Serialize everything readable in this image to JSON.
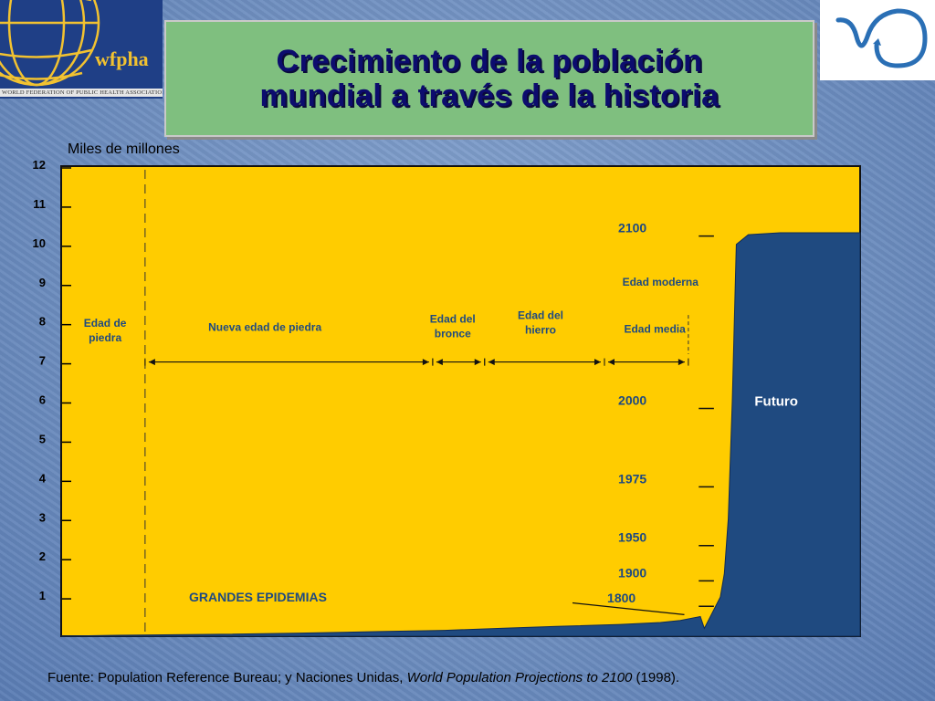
{
  "header": {
    "title_line1": "Crecimiento de la población",
    "title_line2": "mundial a través de la historia",
    "logo_left_text": "wfpha",
    "logo_left_org": "WORLD FEDERATION OF PUBLIC HEALTH ASSOCIATIONS"
  },
  "colors": {
    "plot_background": "#ffcc00",
    "area_fill": "#1f4a80",
    "title_bg": "#7fbf7f",
    "title_text": "#0c0c6e"
  },
  "chart_data": {
    "type": "area",
    "ylabel": "Miles de millones",
    "ylim": [
      0,
      12
    ],
    "y_ticks": [
      1,
      2,
      3,
      4,
      5,
      6,
      7,
      8,
      9,
      10,
      11,
      12
    ],
    "series": [
      {
        "points": [
          {
            "t": 0.0,
            "v": 0.0
          },
          {
            "t": 0.06,
            "v": 0.02
          },
          {
            "t": 0.1,
            "v": 0.03
          },
          {
            "t": 0.2,
            "v": 0.05
          },
          {
            "t": 0.3,
            "v": 0.08
          },
          {
            "t": 0.4,
            "v": 0.12
          },
          {
            "t": 0.48,
            "v": 0.15
          },
          {
            "t": 0.55,
            "v": 0.2
          },
          {
            "t": 0.62,
            "v": 0.25
          },
          {
            "t": 0.7,
            "v": 0.3
          },
          {
            "t": 0.75,
            "v": 0.35
          },
          {
            "t": 0.775,
            "v": 0.4
          },
          {
            "t": 0.8,
            "v": 0.5
          },
          {
            "t": 0.805,
            "v": 0.2
          },
          {
            "t": 0.815,
            "v": 0.6
          },
          {
            "t": 0.825,
            "v": 1.0
          },
          {
            "t": 0.83,
            "v": 1.6
          },
          {
            "t": 0.835,
            "v": 3.0
          },
          {
            "t": 0.84,
            "v": 6.0
          },
          {
            "t": 0.845,
            "v": 10.0
          },
          {
            "t": 0.86,
            "v": 10.25
          },
          {
            "t": 0.9,
            "v": 10.3
          },
          {
            "t": 1.0,
            "v": 10.3
          }
        ]
      }
    ],
    "year_markers": [
      {
        "label": "2100",
        "value": 10.4
      },
      {
        "label": "2000",
        "value": 6.0
      },
      {
        "label": "1975",
        "value": 4.0
      },
      {
        "label": "1950",
        "value": 2.5
      },
      {
        "label": "1900",
        "value": 1.6
      },
      {
        "label": "1800",
        "value": 0.95
      }
    ],
    "eras": [
      {
        "label": "Edad de\npiedra",
        "start": 0.0,
        "end": 0.105
      },
      {
        "label": "Nueva edad de piedra",
        "start": 0.105,
        "end": 0.465
      },
      {
        "label": "Edad del\nbronce",
        "start": 0.465,
        "end": 0.53
      },
      {
        "label": "Edad del\nhierro",
        "start": 0.53,
        "end": 0.68
      },
      {
        "label": "Edad media",
        "start": 0.68,
        "end": 0.785
      },
      {
        "label": "Edad moderna",
        "start": 0.785,
        "end": 0.8
      }
    ],
    "annotations": {
      "epidemics": "GRANDES EPIDEMIAS",
      "future": "Futuro"
    }
  },
  "footer": {
    "source_prefix": "Fuente: Population Reference Bureau; y Naciones Unidas, ",
    "source_italic": "World Population Projections to 2100",
    "source_suffix": " (1998)."
  }
}
